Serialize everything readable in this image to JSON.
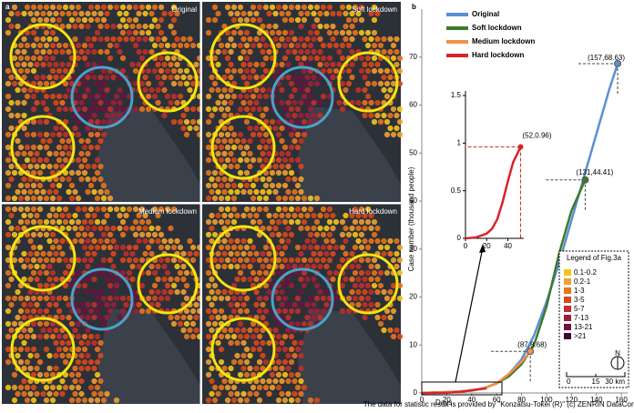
{
  "maps": {
    "label": "a",
    "panels": [
      "Original",
      "Soft lockdown",
      "Medium lockdown",
      "Hard lockdown"
    ],
    "legend": {
      "title": "Legend of Fig.3a",
      "items": [
        "0.1-0.2",
        "0.2-1",
        "1-3",
        "3-5",
        "5-7",
        "7-13",
        "13-21",
        ">21"
      ],
      "colors": [
        "#f5c518",
        "#f0a030",
        "#e8741e",
        "#d9481c",
        "#c0302a",
        "#9a1f3a",
        "#6e1240",
        "#3d0a30"
      ]
    },
    "scale": [
      "0",
      "15",
      "30 km"
    ],
    "north": "N"
  },
  "footer": "The data for statistic result is provided by \"Konzatsu-Tokei (R)\" (c) ZENRIN DataCom CO., LTD.",
  "chart_data": [
    {
      "type": "line",
      "label": "b",
      "xlabel": "Days",
      "ylabel": "Case number (thousand people)",
      "xlim": [
        0,
        165
      ],
      "xticks": [
        0,
        20,
        40,
        60,
        80,
        100,
        120,
        140,
        160
      ],
      "ylim": [
        0,
        80
      ],
      "yticks": [
        0,
        10,
        20,
        30,
        40,
        50,
        60,
        70
      ],
      "series": [
        {
          "name": "Original",
          "color": "#5b8fd6",
          "x": [
            0,
            10,
            20,
            30,
            40,
            50,
            60,
            70,
            80,
            90,
            100,
            110,
            120,
            130,
            140,
            150,
            157
          ],
          "values": [
            0,
            0.1,
            0.2,
            0.3,
            0.5,
            1,
            2,
            4,
            7,
            12,
            19,
            27,
            36,
            45,
            54,
            63,
            68.63
          ]
        },
        {
          "name": "Soft lockdown",
          "color": "#3d7a2a",
          "x": [
            0,
            10,
            20,
            30,
            40,
            50,
            60,
            70,
            80,
            90,
            100,
            110,
            120,
            131
          ],
          "values": [
            0,
            0.1,
            0.2,
            0.3,
            0.5,
            1,
            2,
            3.5,
            6,
            10,
            18,
            29,
            38,
            44.41
          ]
        },
        {
          "name": "Medium lockdown",
          "color": "#f0924a",
          "x": [
            0,
            10,
            20,
            30,
            40,
            50,
            60,
            70,
            80,
            87
          ],
          "values": [
            0,
            0.1,
            0.2,
            0.3,
            0.5,
            1,
            2,
            4,
            6.5,
            8.68
          ]
        },
        {
          "name": "Hard lockdown",
          "color": "#d6252b",
          "x": [
            0,
            10,
            20,
            30,
            40,
            52
          ],
          "values": [
            0,
            0.01,
            0.05,
            0.2,
            0.6,
            0.96
          ]
        }
      ],
      "annotations": [
        "(157,68.63)",
        "(131,44.41)",
        "(87,8.68)",
        "(52,0.96)"
      ]
    },
    {
      "type": "line",
      "xlim": [
        0,
        55
      ],
      "xticks": [
        0,
        20,
        40
      ],
      "ylim": [
        0,
        1.5
      ],
      "yticks": [
        0,
        0.5,
        1,
        1.5
      ],
      "series": [
        {
          "name": "Hard lockdown",
          "color": "#d6252b",
          "x": [
            0,
            10,
            20,
            25,
            30,
            35,
            40,
            45,
            52
          ],
          "values": [
            0,
            0.01,
            0.05,
            0.1,
            0.2,
            0.38,
            0.6,
            0.8,
            0.96
          ]
        }
      ],
      "annotations": [
        "(52,0.96)"
      ]
    }
  ]
}
